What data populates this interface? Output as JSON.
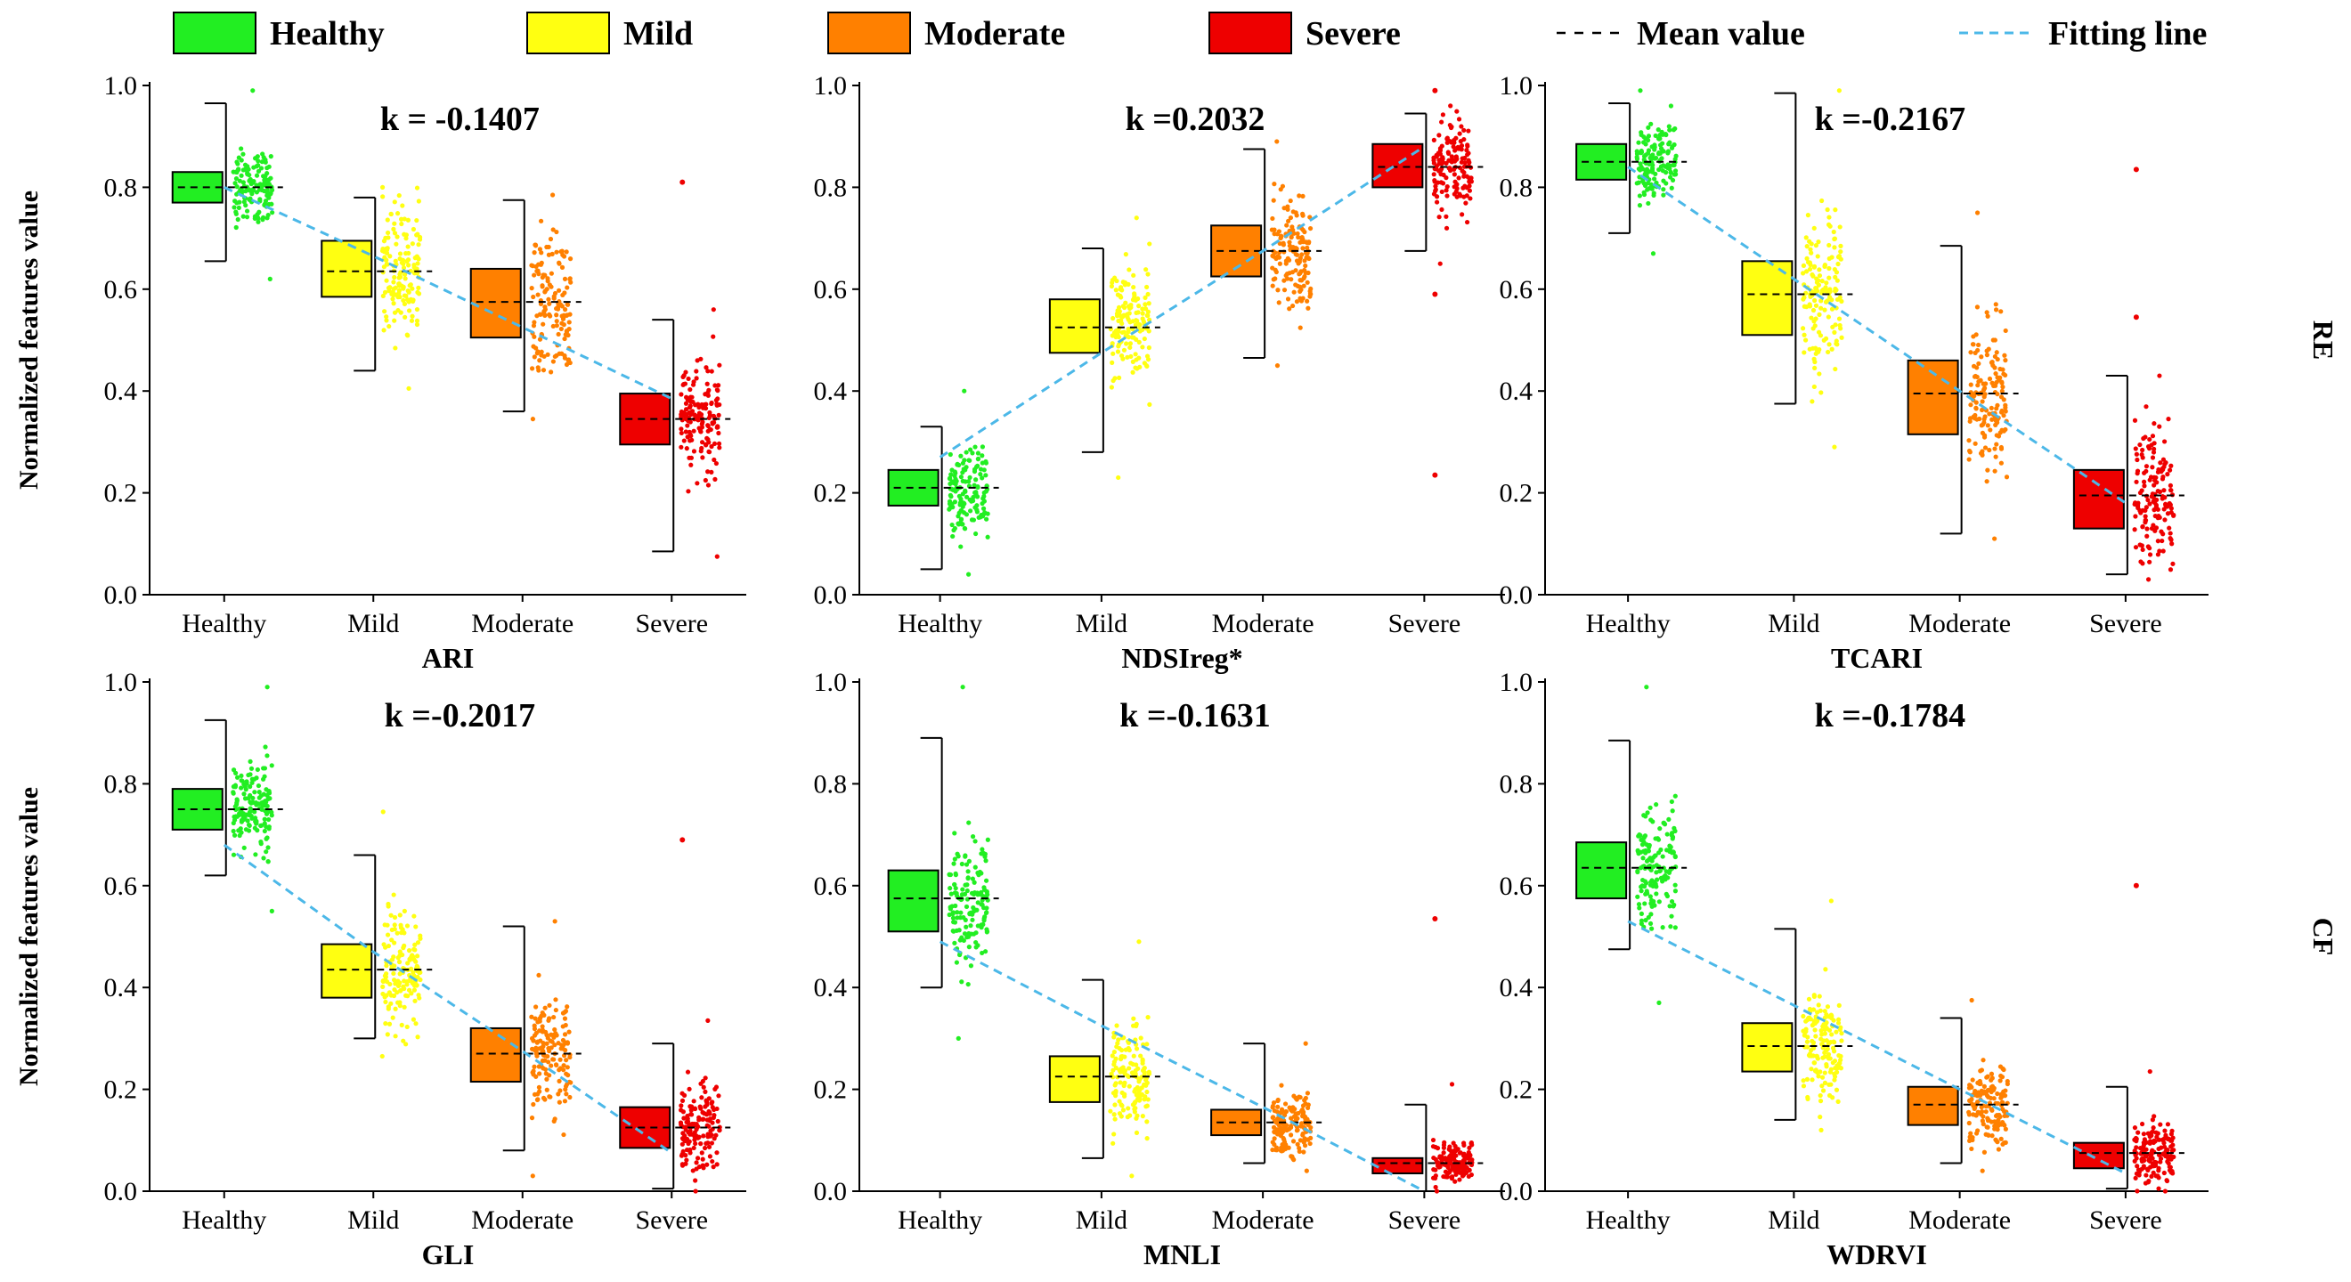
{
  "legend": [
    {
      "label": "Healthy",
      "kind": "box",
      "color": "#22ee22"
    },
    {
      "label": "Mild",
      "kind": "box",
      "color": "#ffff11"
    },
    {
      "label": "Moderate",
      "kind": "box",
      "color": "#ff8000"
    },
    {
      "label": "Severe",
      "kind": "box",
      "color": "#ee0000"
    },
    {
      "label": "Mean value",
      "kind": "mean",
      "color": "#000000"
    },
    {
      "label": "Fitting line",
      "kind": "fit",
      "color": "#4cb8e8"
    }
  ],
  "row_labels": [
    "RE",
    "CF"
  ],
  "ylabel": "Normalized features value",
  "chart_data": [
    {
      "type": "box",
      "title": "",
      "xlabel": "ARI",
      "ylabel": "Normalized features value",
      "row": "RE",
      "k_label": "k = -0.1407",
      "categories": [
        "Healthy",
        "Mild",
        "Moderate",
        "Severe"
      ],
      "yticks": [
        "0.0",
        "0.2",
        "0.4",
        "0.6",
        "0.8",
        "1.0"
      ],
      "ylim": [
        0,
        1
      ],
      "q1": [
        0.77,
        0.585,
        0.505,
        0.295
      ],
      "q3": [
        0.83,
        0.695,
        0.64,
        0.395
      ],
      "whisker_low": [
        0.655,
        0.44,
        0.36,
        0.085
      ],
      "whisker_high": [
        0.965,
        0.78,
        0.775,
        0.54
      ],
      "mean": [
        0.8,
        0.635,
        0.575,
        0.345
      ],
      "scatter_min": [
        0.62,
        0.405,
        0.345,
        0.075
      ],
      "scatter_max": [
        0.99,
        0.8,
        0.785,
        0.56
      ],
      "outliers": [
        [],
        [],
        [],
        [
          0.81
        ]
      ],
      "fit": [
        0.8,
        0.665,
        0.525,
        0.385
      ]
    },
    {
      "type": "box",
      "title": "",
      "xlabel": "NDSIreg*",
      "ylabel": "",
      "row": "RE",
      "k_label": "k =0.2032",
      "categories": [
        "Healthy",
        "Mild",
        "Moderate",
        "Severe"
      ],
      "yticks": [
        "0.0",
        "0.2",
        "0.4",
        "0.6",
        "0.8",
        "1.0"
      ],
      "ylim": [
        0,
        1
      ],
      "q1": [
        0.175,
        0.475,
        0.625,
        0.8
      ],
      "q3": [
        0.245,
        0.58,
        0.725,
        0.885
      ],
      "whisker_low": [
        0.05,
        0.28,
        0.465,
        0.675
      ],
      "whisker_high": [
        0.33,
        0.68,
        0.875,
        0.945
      ],
      "mean": [
        0.21,
        0.525,
        0.675,
        0.84
      ],
      "scatter_min": [
        0.04,
        0.23,
        0.45,
        0.65
      ],
      "scatter_max": [
        0.4,
        0.74,
        0.89,
        0.96
      ],
      "outliers": [
        [],
        [],
        [],
        [
          0.235,
          0.59,
          0.99
        ]
      ],
      "fit": [
        0.27,
        0.475,
        0.675,
        0.88
      ]
    },
    {
      "type": "box",
      "title": "",
      "xlabel": "TCARI",
      "ylabel": "",
      "row": "RE",
      "k_label": "k =-0.2167",
      "categories": [
        "Healthy",
        "Mild",
        "Moderate",
        "Severe"
      ],
      "yticks": [
        "0.0",
        "0.2",
        "0.4",
        "0.6",
        "0.8",
        "1.0"
      ],
      "ylim": [
        0,
        1
      ],
      "q1": [
        0.815,
        0.51,
        0.315,
        0.13
      ],
      "q3": [
        0.885,
        0.655,
        0.46,
        0.245
      ],
      "whisker_low": [
        0.71,
        0.375,
        0.12,
        0.04
      ],
      "whisker_high": [
        0.965,
        0.985,
        0.685,
        0.43
      ],
      "mean": [
        0.85,
        0.59,
        0.395,
        0.195
      ],
      "scatter_min": [
        0.67,
        0.29,
        0.11,
        0.03
      ],
      "scatter_max": [
        0.99,
        0.99,
        0.75,
        0.43
      ],
      "outliers": [
        [],
        [],
        [],
        [
          0.545,
          0.835
        ]
      ],
      "fit": [
        0.84,
        0.62,
        0.4,
        0.18
      ]
    },
    {
      "type": "box",
      "title": "",
      "xlabel": "GLI",
      "ylabel": "Normalized features value",
      "row": "CF",
      "k_label": "k =-0.2017",
      "categories": [
        "Healthy",
        "Mild",
        "Moderate",
        "Severe"
      ],
      "yticks": [
        "0.0",
        "0.2",
        "0.4",
        "0.6",
        "0.8",
        "1.0"
      ],
      "ylim": [
        0,
        1
      ],
      "q1": [
        0.71,
        0.38,
        0.215,
        0.085
      ],
      "q3": [
        0.79,
        0.485,
        0.32,
        0.165
      ],
      "whisker_low": [
        0.62,
        0.3,
        0.08,
        0.005
      ],
      "whisker_high": [
        0.925,
        0.66,
        0.52,
        0.29
      ],
      "mean": [
        0.75,
        0.435,
        0.27,
        0.125
      ],
      "scatter_min": [
        0.55,
        0.265,
        0.03,
        0.0
      ],
      "scatter_max": [
        0.99,
        0.745,
        0.53,
        0.335
      ],
      "outliers": [
        [],
        [],
        [],
        [
          0.69
        ]
      ],
      "fit": [
        0.68,
        0.47,
        0.275,
        0.075
      ]
    },
    {
      "type": "box",
      "title": "",
      "xlabel": "MNLI",
      "ylabel": "",
      "row": "CF",
      "k_label": "k =-0.1631",
      "categories": [
        "Healthy",
        "Mild",
        "Moderate",
        "Severe"
      ],
      "yticks": [
        "0.0",
        "0.2",
        "0.4",
        "0.6",
        "0.8",
        "1.0"
      ],
      "ylim": [
        0,
        1
      ],
      "q1": [
        0.51,
        0.175,
        0.11,
        0.035
      ],
      "q3": [
        0.63,
        0.265,
        0.16,
        0.065
      ],
      "whisker_low": [
        0.4,
        0.065,
        0.055,
        0.0
      ],
      "whisker_high": [
        0.89,
        0.415,
        0.29,
        0.17
      ],
      "mean": [
        0.575,
        0.225,
        0.135,
        0.055
      ],
      "scatter_min": [
        0.3,
        0.03,
        0.04,
        0.0
      ],
      "scatter_max": [
        0.99,
        0.49,
        0.29,
        0.21
      ],
      "outliers": [
        [],
        [],
        [],
        [
          0.535
        ]
      ],
      "fit": [
        0.49,
        0.325,
        0.165,
        0.0
      ]
    },
    {
      "type": "box",
      "title": "",
      "xlabel": "WDRVI",
      "ylabel": "",
      "row": "CF",
      "k_label": "k =-0.1784",
      "categories": [
        "Healthy",
        "Mild",
        "Moderate",
        "Severe"
      ],
      "yticks": [
        "0.0",
        "0.2",
        "0.4",
        "0.6",
        "0.8",
        "1.0"
      ],
      "ylim": [
        0,
        1
      ],
      "q1": [
        0.575,
        0.235,
        0.13,
        0.045
      ],
      "q3": [
        0.685,
        0.33,
        0.205,
        0.095
      ],
      "whisker_low": [
        0.475,
        0.14,
        0.055,
        0.005
      ],
      "whisker_high": [
        0.885,
        0.515,
        0.34,
        0.205
      ],
      "mean": [
        0.635,
        0.285,
        0.17,
        0.075
      ],
      "scatter_min": [
        0.37,
        0.12,
        0.04,
        0.0
      ],
      "scatter_max": [
        0.99,
        0.57,
        0.375,
        0.235
      ],
      "outliers": [
        [],
        [],
        [],
        [
          0.6
        ]
      ],
      "fit": [
        0.53,
        0.365,
        0.2,
        0.035
      ]
    }
  ]
}
